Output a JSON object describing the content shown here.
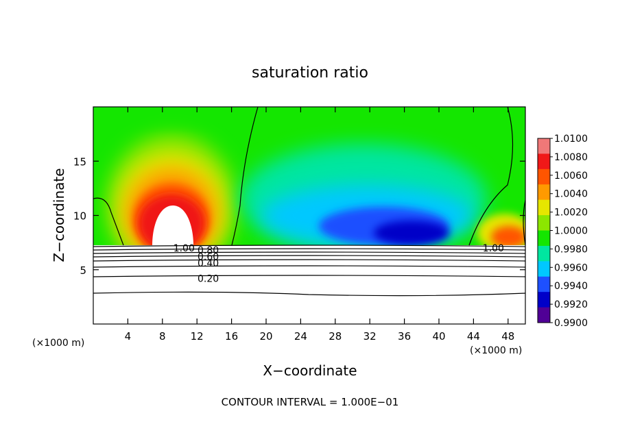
{
  "chart_data": {
    "type": "heatmap",
    "title": "saturation ratio",
    "xlabel": "X−coordinate",
    "ylabel": "Z−coordinate",
    "x_unit_left": "(×1000 m)",
    "x_unit_right": "(×1000 m)",
    "xlim": [
      0,
      50
    ],
    "ylim": [
      0,
      20
    ],
    "x_ticks": [
      4,
      8,
      12,
      16,
      20,
      24,
      28,
      32,
      36,
      40,
      44,
      48
    ],
    "y_ticks": [
      5,
      10,
      15
    ],
    "footer": "CONTOUR INTERVAL = 1.000E−01",
    "colorbar": {
      "labels": [
        "1.0100",
        "1.0080",
        "1.0060",
        "1.0040",
        "1.0020",
        "1.0000",
        "0.9980",
        "0.9960",
        "0.9940",
        "0.9920",
        "0.9900"
      ],
      "colors": [
        "#f07878",
        "#f01818",
        "#ff5500",
        "#ff9a00",
        "#e6e600",
        "#8ce600",
        "#14e600",
        "#00e6a0",
        "#00c8ff",
        "#1e50ff",
        "#0000c8",
        "#500096"
      ]
    },
    "contour_labels": [
      {
        "text": "1.00",
        "x": 10.5,
        "y": 7.0
      },
      {
        "text": "0.80",
        "x": 13.3,
        "y": 6.8
      },
      {
        "text": "0.60",
        "x": 13.3,
        "y": 6.2
      },
      {
        "text": "0.40",
        "x": 13.3,
        "y": 5.6
      },
      {
        "text": "0.20",
        "x": 13.3,
        "y": 4.2
      },
      {
        "text": "1.00",
        "x": 46.3,
        "y": 7.0
      }
    ]
  }
}
